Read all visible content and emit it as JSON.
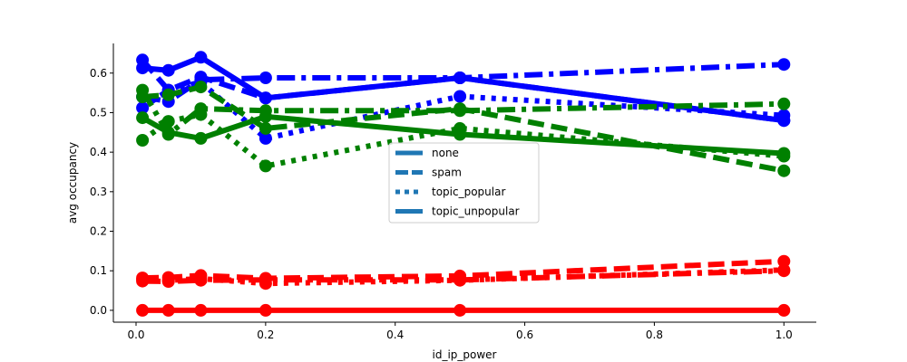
{
  "chart_data": {
    "type": "line",
    "xlabel": "id_ip_power",
    "ylabel": "avg occupancy",
    "xlim": [
      -0.035,
      1.05
    ],
    "ylim": [
      -0.03,
      0.675
    ],
    "x_ticks": [
      0.0,
      0.2,
      0.4,
      0.6,
      0.8,
      1.0
    ],
    "x_tick_labels": [
      "0.0",
      "0.2",
      "0.4",
      "0.6",
      "0.8",
      "1.0"
    ],
    "y_ticks": [
      0.0,
      0.1,
      0.2,
      0.3,
      0.4,
      0.5,
      0.6
    ],
    "y_tick_labels": [
      "0.0",
      "0.1",
      "0.2",
      "0.3",
      "0.4",
      "0.5",
      "0.6"
    ],
    "grid": false,
    "legend_placement": "center",
    "legend": [
      {
        "label": "none",
        "dash": "solid"
      },
      {
        "label": "spam",
        "dash": "dashed"
      },
      {
        "label": "topic_popular",
        "dash": "dotted"
      },
      {
        "label": "topic_unpopular",
        "dash": "dashdot"
      }
    ],
    "legend_color": "#1f77b4",
    "x": [
      0.01,
      0.05,
      0.1,
      0.2,
      0.5,
      1.0
    ],
    "series": [
      {
        "color": "#0000ff",
        "dash": "solid",
        "values": [
          0.613,
          0.607,
          0.64,
          0.537,
          0.588,
          0.48
        ]
      },
      {
        "color": "#0000ff",
        "dash": "dashed",
        "values": [
          0.633,
          0.557,
          0.59,
          0.537,
          0.588,
          0.48
        ]
      },
      {
        "color": "#0000ff",
        "dash": "dotted",
        "values": [
          0.512,
          0.557,
          0.577,
          0.435,
          0.541,
          0.493
        ]
      },
      {
        "color": "#0000ff",
        "dash": "dashdot",
        "values": [
          0.54,
          0.528,
          0.583,
          0.588,
          0.588,
          0.622
        ]
      },
      {
        "color": "#008000",
        "dash": "solid",
        "values": [
          0.487,
          0.45,
          0.435,
          0.49,
          0.445,
          0.397
        ]
      },
      {
        "color": "#008000",
        "dash": "dashed",
        "values": [
          0.54,
          0.545,
          0.565,
          0.46,
          0.51,
          0.353
        ]
      },
      {
        "color": "#008000",
        "dash": "dotted",
        "values": [
          0.43,
          0.478,
          0.495,
          0.365,
          0.46,
          0.39
        ]
      },
      {
        "color": "#008000",
        "dash": "dashdot",
        "values": [
          0.557,
          0.445,
          0.51,
          0.505,
          0.505,
          0.522
        ]
      },
      {
        "color": "#ff0000",
        "dash": "solid",
        "values": [
          0.0,
          0.0,
          0.0,
          0.0,
          0.0,
          0.0
        ]
      },
      {
        "color": "#ff0000",
        "dash": "dashed",
        "values": [
          0.082,
          0.083,
          0.088,
          0.081,
          0.087,
          0.124
        ]
      },
      {
        "color": "#ff0000",
        "dash": "dotted",
        "values": [
          0.078,
          0.076,
          0.08,
          0.068,
          0.076,
          0.102
        ]
      },
      {
        "color": "#ff0000",
        "dash": "dashdot",
        "values": [
          0.074,
          0.073,
          0.076,
          0.077,
          0.077,
          0.1
        ]
      }
    ]
  }
}
